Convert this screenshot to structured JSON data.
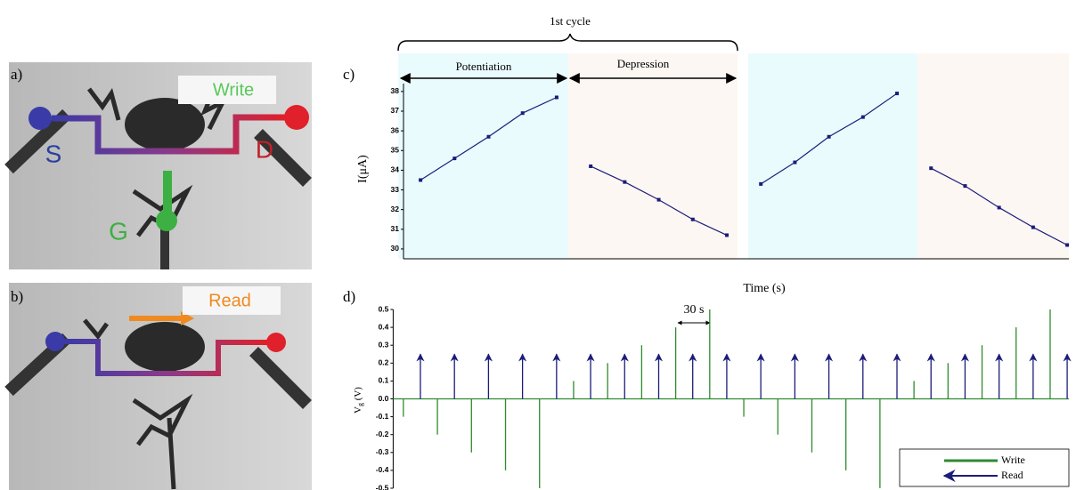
{
  "photos": [
    {
      "label": "a)",
      "caption": "Write",
      "terminals": [
        "S",
        "D",
        "G"
      ]
    },
    {
      "label": "b)",
      "caption": "Read"
    }
  ],
  "chart_data": [
    {
      "type": "line",
      "label": "c)",
      "annotation_top": "1st cycle",
      "phase_labels": [
        "Potentiation",
        "Depression"
      ],
      "ylabel": "I(μA)",
      "xlabel": "Time (s)",
      "xlim": [
        0.5,
        20.05
      ],
      "ylim": [
        29.5,
        38.4
      ],
      "yticks": [
        30,
        31,
        32,
        33,
        34,
        35,
        36,
        37,
        38
      ],
      "series": [
        {
          "color": "#1c1c7a",
          "x": [
            1,
            2,
            3,
            4,
            5
          ],
          "values": [
            33.5,
            34.6,
            35.7,
            36.9,
            37.7
          ]
        },
        {
          "color": "#1c1c7a",
          "x": [
            6,
            7,
            8,
            9,
            10
          ],
          "values": [
            34.2,
            33.4,
            32.5,
            31.5,
            30.7
          ]
        },
        {
          "color": "#1c1c7a",
          "x": [
            11,
            12,
            13,
            14,
            15
          ],
          "values": [
            33.3,
            34.4,
            35.7,
            36.7,
            37.9
          ]
        },
        {
          "color": "#1c1c7a",
          "x": [
            16,
            17,
            18,
            19,
            20
          ],
          "values": [
            34.1,
            33.2,
            32.1,
            31.1,
            30.2
          ]
        }
      ]
    },
    {
      "type": "pulse",
      "label": "d)",
      "ylabel": [
        "V",
        "g",
        " (V)"
      ],
      "annotation": "30 s",
      "xlim": [
        0.2,
        20.05
      ],
      "ylim": [
        -0.5,
        0.5
      ],
      "yticks": [
        0.5,
        0.4,
        0.3,
        0.2,
        0.1,
        {
          "value": 0,
          "label": "0.0"
        },
        -0.1,
        -0.2,
        -0.3,
        -0.4,
        -0.5
      ],
      "legend": "lower right",
      "series": [
        {
          "name": "Write",
          "color": "#2e8b2e",
          "marker": "line",
          "x": [
            0.5,
            1.5,
            2.5,
            3.5,
            4.5,
            5.5,
            6.5,
            7.5,
            8.5,
            9.5,
            10.5,
            11.5,
            12.5,
            13.5,
            14.5,
            15.5,
            16.5,
            17.5,
            18.5,
            19.5
          ],
          "values": [
            -0.1,
            -0.2,
            -0.3,
            -0.4,
            -0.5,
            0.1,
            0.2,
            0.3,
            0.4,
            0.5,
            -0.1,
            -0.2,
            -0.3,
            -0.4,
            -0.5,
            0.1,
            0.2,
            0.3,
            0.4,
            0.5
          ]
        },
        {
          "name": "Read",
          "color": "#1c1c7a",
          "marker": "arrow",
          "x": [
            1,
            2,
            3,
            4,
            5,
            6,
            7,
            8,
            9,
            10,
            11,
            12,
            13,
            14,
            15,
            16,
            17,
            18,
            19,
            20
          ],
          "values": [
            0.25,
            0.25,
            0.25,
            0.25,
            0.25,
            0.25,
            0.25,
            0.25,
            0.25,
            0.25,
            0.25,
            0.25,
            0.25,
            0.25,
            0.25,
            0.25,
            0.25,
            0.25,
            0.25,
            0.25
          ]
        }
      ]
    }
  ]
}
